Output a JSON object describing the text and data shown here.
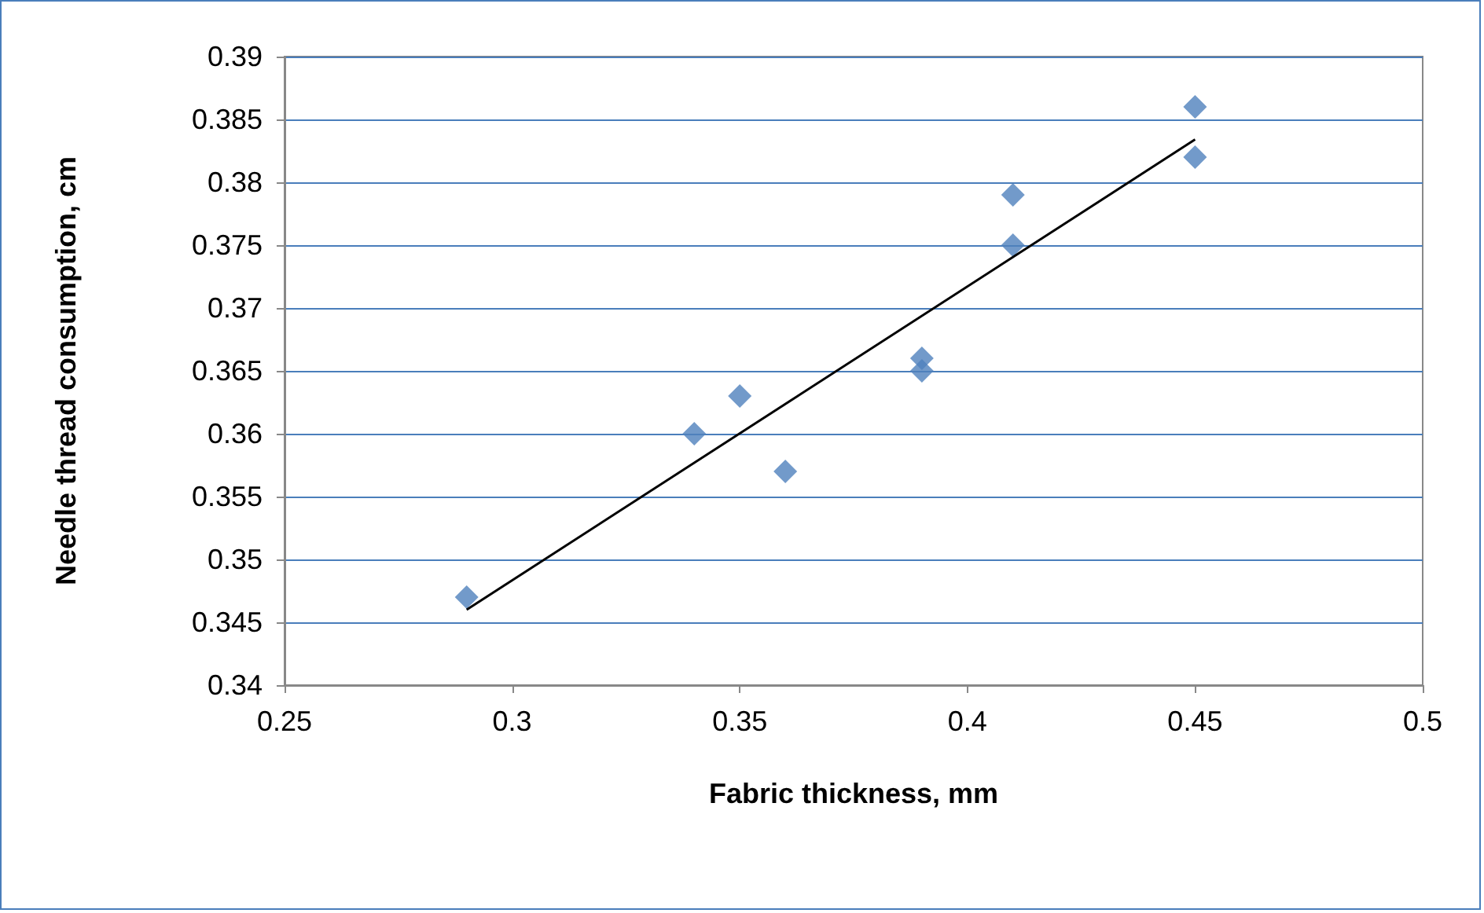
{
  "chart_data": {
    "type": "scatter",
    "xlabel": "Fabric thickness, mm",
    "ylabel": "Needle thread consumption, cm",
    "xlim": [
      0.25,
      0.5
    ],
    "xticks": [
      0.25,
      0.3,
      0.35,
      0.4,
      0.45,
      0.5
    ],
    "ylim": [
      0.34,
      0.39
    ],
    "yticks": [
      0.34,
      0.345,
      0.35,
      0.355,
      0.36,
      0.365,
      0.37,
      0.375,
      0.38,
      0.385,
      0.39
    ],
    "grid": "y",
    "marker": "diamond",
    "series": [
      {
        "color": "#4f81bd",
        "x": [
          0.29,
          0.34,
          0.35,
          0.36,
          0.39,
          0.39,
          0.41,
          0.41,
          0.45,
          0.45
        ],
        "values": [
          0.347,
          0.36,
          0.363,
          0.357,
          0.366,
          0.365,
          0.379,
          0.375,
          0.386,
          0.382
        ]
      },
      {
        "type": "line",
        "marker": "none",
        "color": "#000000",
        "x": [
          0.29,
          0.45
        ],
        "values": [
          0.346,
          0.3834
        ]
      }
    ]
  }
}
